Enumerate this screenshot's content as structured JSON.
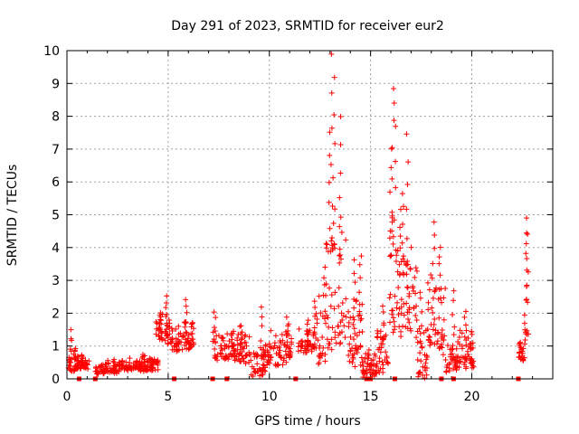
{
  "chart_data": {
    "type": "scatter",
    "title": "Day 291 of 2023, SRMTID for receiver eur2",
    "xlabel": "GPS time / hours",
    "ylabel": "SRMTID / TECUs",
    "xlim": [
      0,
      24
    ],
    "ylim": [
      0,
      10
    ],
    "xticks": [
      0,
      5,
      10,
      15,
      20
    ],
    "yticks": [
      0,
      1,
      2,
      3,
      4,
      5,
      6,
      7,
      8,
      9,
      10
    ],
    "grid": true,
    "marker": "+",
    "color": "#ff0000",
    "series": [
      {
        "name": "SRMTID",
        "segments": [
          {
            "x0": 0.0,
            "x1": 0.5,
            "base": 0.5,
            "spread": 0.5,
            "peaks": [
              [
                0.2,
                1.6
              ],
              [
                0.45,
                1.1
              ]
            ]
          },
          {
            "x0": 0.5,
            "x1": 1.1,
            "base": 0.5,
            "spread": 0.3,
            "peaks": [
              [
                0.7,
                0.8
              ]
            ]
          },
          {
            "x0": 1.4,
            "x1": 2.5,
            "base": 0.35,
            "spread": 0.3,
            "peaks": [
              [
                2.3,
                0.7
              ]
            ]
          },
          {
            "x0": 2.5,
            "x1": 4.5,
            "base": 0.45,
            "spread": 0.35,
            "peaks": [
              [
                3.8,
                0.8
              ]
            ]
          },
          {
            "x0": 4.4,
            "x1": 5.2,
            "base": 1.6,
            "spread": 0.8,
            "peaks": [
              [
                4.9,
                2.6
              ],
              [
                4.6,
                2.1
              ]
            ]
          },
          {
            "x0": 5.2,
            "x1": 6.3,
            "base": 1.3,
            "spread": 0.8,
            "peaks": [
              [
                5.9,
                2.5
              ],
              [
                6.2,
                1.9
              ]
            ]
          },
          {
            "x0": 7.2,
            "x1": 8.3,
            "base": 1.0,
            "spread": 0.8,
            "peaks": [
              [
                7.3,
                2.1
              ]
            ]
          },
          {
            "x0": 8.3,
            "x1": 9.1,
            "base": 1.0,
            "spread": 0.8,
            "peaks": [
              [
                8.6,
                1.8
              ]
            ]
          },
          {
            "x0": 9.1,
            "x1": 9.8,
            "base": 0.5,
            "spread": 0.7,
            "peaks": [
              [
                9.6,
                2.2
              ]
            ]
          },
          {
            "x0": 9.8,
            "x1": 11.1,
            "base": 1.0,
            "spread": 0.9,
            "peaks": [
              [
                10.9,
                2.0
              ]
            ]
          },
          {
            "x0": 11.4,
            "x1": 12.2,
            "base": 1.2,
            "spread": 0.6,
            "peaks": [
              [
                11.9,
                1.8
              ]
            ]
          },
          {
            "x0": 12.2,
            "x1": 12.8,
            "base": 1.6,
            "spread": 1.8,
            "peaks": [
              [
                12.7,
                3.5
              ]
            ]
          },
          {
            "x0": 12.8,
            "x1": 13.8,
            "base": 3.2,
            "spread": 3.5,
            "peaks": [
              [
                13.1,
                9.9
              ],
              [
                13.2,
                9.2
              ],
              [
                13.5,
                8.0
              ],
              [
                13.0,
                7.6
              ]
            ]
          },
          {
            "x0": 13.8,
            "x1": 14.6,
            "base": 1.5,
            "spread": 1.8,
            "peaks": [
              [
                14.2,
                3.7
              ],
              [
                14.5,
                3.9
              ]
            ]
          },
          {
            "x0": 14.6,
            "x1": 15.3,
            "base": 0.4,
            "spread": 0.6,
            "peaks": [
              [
                14.9,
                0.9
              ]
            ]
          },
          {
            "x0": 15.3,
            "x1": 15.9,
            "base": 0.9,
            "spread": 1.1,
            "peaks": [
              [
                15.6,
                2.4
              ]
            ]
          },
          {
            "x0": 15.9,
            "x1": 16.4,
            "base": 3.2,
            "spread": 3.0,
            "peaks": [
              [
                16.1,
                9.0
              ],
              [
                16.2,
                8.6
              ],
              [
                16.0,
                7.2
              ]
            ]
          },
          {
            "x0": 16.4,
            "x1": 17.3,
            "base": 2.8,
            "spread": 2.2,
            "peaks": [
              [
                16.6,
                5.8
              ],
              [
                16.8,
                7.6
              ],
              [
                16.5,
                5.2
              ]
            ]
          },
          {
            "x0": 17.3,
            "x1": 17.8,
            "base": 0.8,
            "spread": 1.4,
            "peaks": [
              [
                17.5,
                2.8
              ]
            ]
          },
          {
            "x0": 17.8,
            "x1": 18.7,
            "base": 2.2,
            "spread": 2.2,
            "peaks": [
              [
                18.1,
                4.9
              ],
              [
                18.4,
                4.2
              ]
            ]
          },
          {
            "x0": 18.7,
            "x1": 19.3,
            "base": 0.7,
            "spread": 0.8,
            "peaks": [
              [
                19.1,
                2.8
              ]
            ]
          },
          {
            "x0": 19.3,
            "x1": 20.1,
            "base": 0.9,
            "spread": 0.9,
            "peaks": [
              [
                19.7,
                2.2
              ],
              [
                20.0,
                1.6
              ]
            ]
          },
          {
            "x0": 22.3,
            "x1": 22.6,
            "base": 0.8,
            "spread": 0.4,
            "peaks": [
              [
                22.4,
                1.2
              ]
            ]
          },
          {
            "x0": 22.6,
            "x1": 22.8,
            "base": 2.0,
            "spread": 1.6,
            "peaks": [
              [
                22.7,
                5.0
              ],
              [
                22.75,
                4.6
              ]
            ]
          }
        ]
      }
    ],
    "zero_markers": [
      0.6,
      1.4,
      5.3,
      7.2,
      7.9,
      11.3,
      14.8,
      15.0,
      16.2,
      18.5,
      19.1,
      22.3
    ]
  }
}
